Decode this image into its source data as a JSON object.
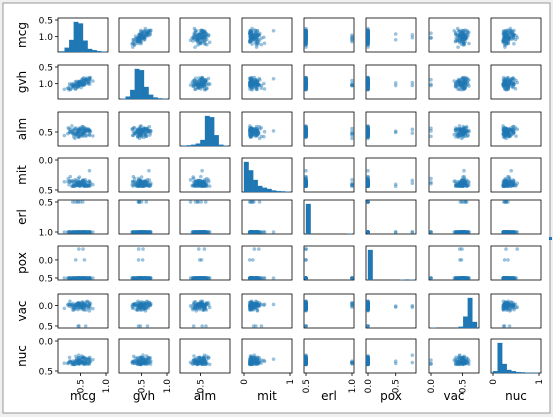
{
  "chart_data": {
    "type": "scatter",
    "kind": "scatter-matrix",
    "variables": [
      "mcg",
      "gvh",
      "alm",
      "mit",
      "erl",
      "pox",
      "vac",
      "nuc"
    ],
    "diagonal": "histogram",
    "colors": {
      "marker": "#1f77b4",
      "background": "#ffffff",
      "window": "#f0f0f0"
    },
    "ranges": {
      "mcg": [
        0.1,
        1.0
      ],
      "gvh": [
        0.1,
        1.0
      ],
      "alm": [
        0.2,
        0.95
      ],
      "mit": [
        0.0,
        1.0
      ],
      "erl": [
        0.5,
        1.0
      ],
      "pox": [
        0.0,
        0.83
      ],
      "vac": [
        0.0,
        0.73
      ],
      "nuc": [
        0.0,
        1.0
      ]
    },
    "y_ticks": {
      "mcg": [
        "1.0",
        "0.5"
      ],
      "gvh": [
        "1.0",
        "0.5"
      ],
      "alm": [
        "0.5"
      ],
      "mit": [
        "0.5",
        "0.0"
      ],
      "erl": [
        "1.0",
        "0.5"
      ],
      "pox": [
        "0.5",
        "0.0"
      ],
      "vac": [
        "0.5",
        "0.0"
      ],
      "nuc": [
        "0.5",
        "0.0"
      ]
    },
    "x_ticks": {
      "mcg": [
        "0.5",
        "1.0"
      ],
      "gvh": [
        "0.5",
        "1.0"
      ],
      "alm": [
        "0.5"
      ],
      "mit": [
        "0",
        "1"
      ],
      "erl": [
        "0.5",
        "1.0"
      ],
      "pox": [
        "0.0",
        "0.5"
      ],
      "vac": [
        "0.0",
        "0.5"
      ],
      "nuc": [
        "0",
        "1"
      ]
    },
    "tick_values": {
      "mcg": [
        0.5,
        1.0
      ],
      "gvh": [
        0.5,
        1.0
      ],
      "alm": [
        0.5
      ],
      "mit": [
        0.0,
        1.0
      ],
      "erl": [
        0.5,
        1.0
      ],
      "pox": [
        0.0,
        0.5
      ],
      "vac": [
        0.0,
        0.5
      ],
      "nuc": [
        0.0,
        1.0
      ]
    },
    "histograms": {
      "mcg": [
        2,
        14,
        40,
        100,
        95,
        38,
        10,
        6,
        3,
        1
      ],
      "gvh": [
        1,
        8,
        30,
        100,
        96,
        40,
        14,
        5,
        2,
        1
      ],
      "alm": [
        1,
        2,
        4,
        8,
        20,
        100,
        96,
        36,
        4,
        1
      ],
      "mit": [
        100,
        72,
        40,
        20,
        14,
        10,
        5,
        3,
        2,
        1
      ],
      "erl": [
        100,
        0,
        0,
        0,
        0,
        0,
        0,
        0,
        0,
        1
      ],
      "pox": [
        100,
        0,
        0,
        0,
        0,
        0,
        0,
        1,
        0,
        1
      ],
      "vac": [
        1,
        0,
        0,
        0,
        0,
        0,
        4,
        38,
        100,
        20
      ],
      "nuc": [
        6,
        100,
        30,
        10,
        6,
        3,
        2,
        1,
        1,
        1
      ]
    }
  }
}
